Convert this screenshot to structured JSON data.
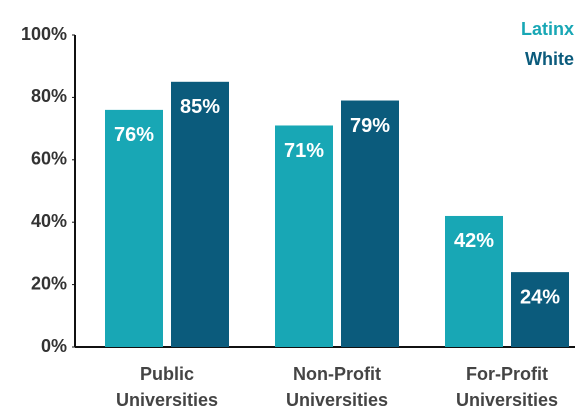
{
  "chart_data": {
    "type": "bar",
    "categories": [
      "Public Universities",
      "Non-Profit Universities",
      "For-Profit Universities"
    ],
    "series": [
      {
        "name": "Latinx",
        "color": "#18a7b5",
        "values": [
          76,
          71,
          42
        ],
        "value_labels": [
          "76%",
          "71%",
          "42%"
        ]
      },
      {
        "name": "White",
        "color": "#0b5b7c",
        "values": [
          85,
          79,
          24
        ],
        "value_labels": [
          "85%",
          "79%",
          "24%"
        ]
      }
    ],
    "ylim": [
      0,
      100
    ],
    "yticks": [
      {
        "value": 0,
        "label": "0%"
      },
      {
        "value": 20,
        "label": "20%"
      },
      {
        "value": 40,
        "label": "40%"
      },
      {
        "value": 60,
        "label": "60%"
      },
      {
        "value": 80,
        "label": "80%"
      },
      {
        "value": 100,
        "label": "100%"
      }
    ],
    "grid": false,
    "legend": "top-right"
  }
}
